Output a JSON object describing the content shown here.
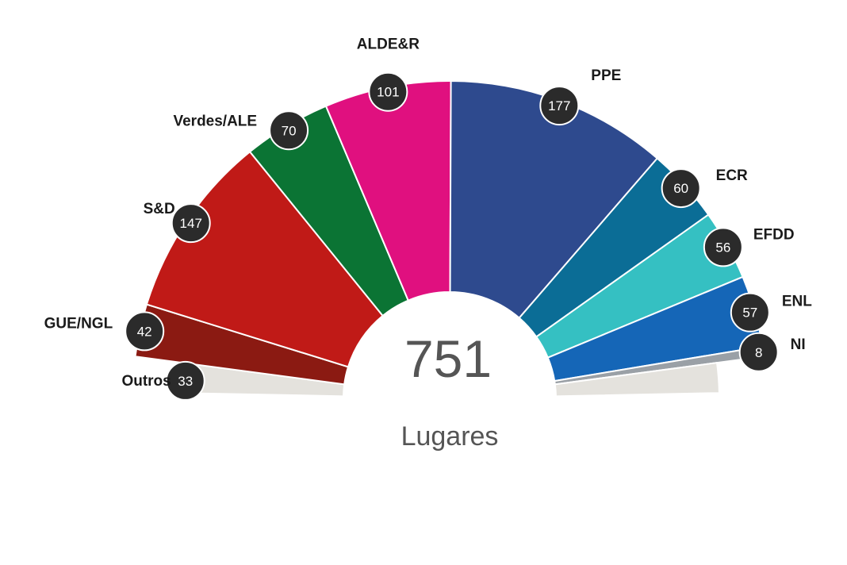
{
  "chart_data": {
    "type": "pie",
    "shape": "half-donut",
    "total": "751",
    "total_label": "Lugares",
    "series": [
      {
        "name": "Outros",
        "value": 33,
        "color": "#e4e2dd"
      },
      {
        "name": "GUE/NGL",
        "value": 42,
        "color": "#8b1a12"
      },
      {
        "name": "S&D",
        "value": 147,
        "color": "#c01a17"
      },
      {
        "name": "Verdes/ALE",
        "value": 70,
        "color": "#0b7434"
      },
      {
        "name": "ALDE&R",
        "value": 101,
        "color": "#e0107f"
      },
      {
        "name": "PPE",
        "value": 177,
        "color": "#2e4a8e"
      },
      {
        "name": "ECR",
        "value": 60,
        "color": "#0b6d96"
      },
      {
        "name": "EFDD",
        "value": 56,
        "color": "#35c0c2"
      },
      {
        "name": "ENL",
        "value": 57,
        "color": "#1566b7"
      },
      {
        "name": "NI",
        "value": 8,
        "color": "#9aa0a6"
      },
      {
        "name": "",
        "value": 33,
        "color": "#e4e2dd"
      }
    ]
  }
}
